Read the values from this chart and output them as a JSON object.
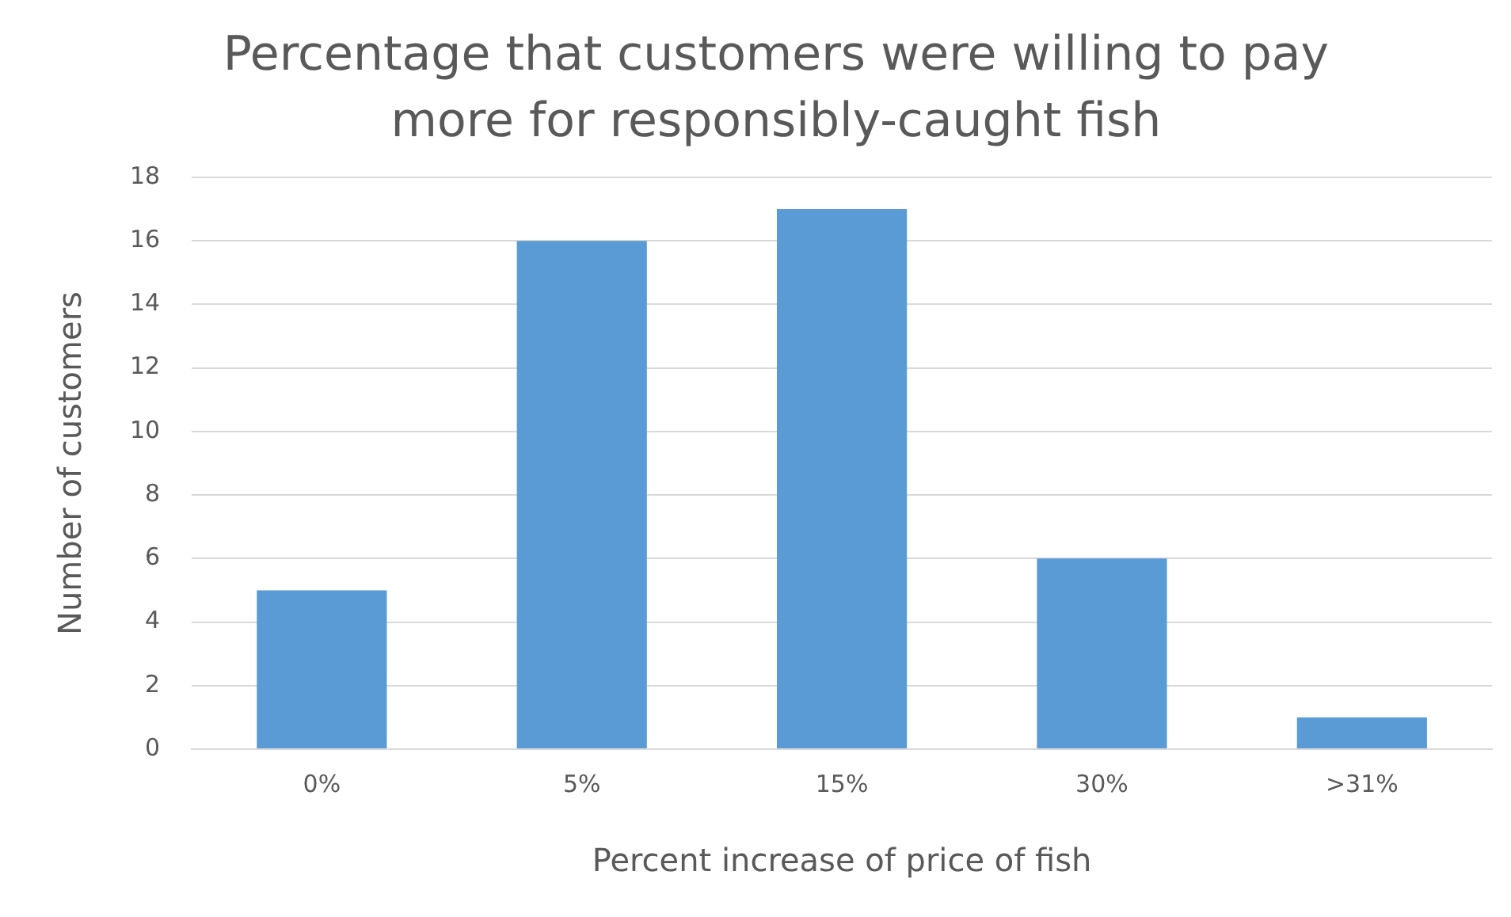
{
  "chart_data": {
    "type": "bar",
    "title": "Percentage that customers were willing to pay more for responsibly-caught fish",
    "xlabel": "Percent increase of price of fish",
    "ylabel": "Number of customers",
    "categories": [
      "0%",
      "5%",
      "15%",
      "30%",
      ">31%"
    ],
    "values": [
      5,
      16,
      17,
      6,
      1
    ],
    "color": "#5b9bd5",
    "ylim": [
      0,
      18
    ],
    "yticks": [
      0,
      2,
      4,
      6,
      8,
      10,
      12,
      14,
      16,
      18
    ],
    "grid": "y"
  }
}
